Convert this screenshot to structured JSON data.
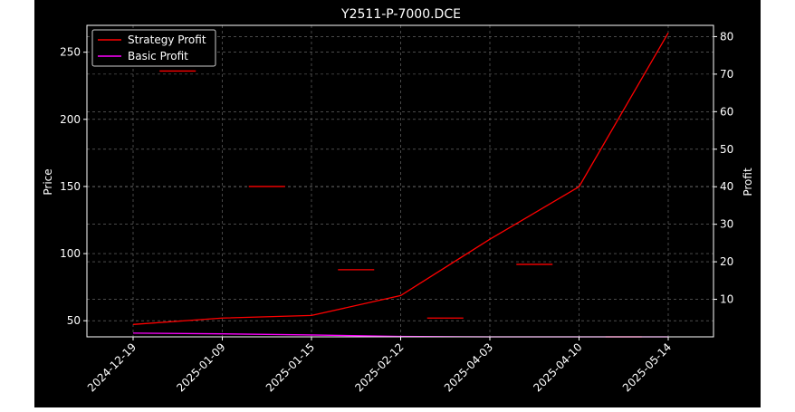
{
  "chart_data": {
    "type": "line",
    "title": "Y2511-P-7000.DCE",
    "xlabel": "",
    "ylabel": "Price",
    "y2label": "Profit",
    "categories": [
      "2024-12-19",
      "2025-01-09",
      "2025-01-15",
      "2025-02-12",
      "2025-04-03",
      "2025-04-10",
      "2025-05-14"
    ],
    "ylim": [
      38,
      270
    ],
    "yticks": [
      "50",
      "100",
      "150",
      "200",
      "250"
    ],
    "y2lim": [
      0,
      83
    ],
    "y2ticks": [
      "10",
      "20",
      "30",
      "40",
      "50",
      "60",
      "70",
      "80"
    ],
    "grid": true,
    "legend_position": "top-left",
    "background": "#000000",
    "price_markers": {
      "color": "#ff0000",
      "values": [
        236,
        150,
        88,
        52,
        92,
        38
      ]
    },
    "series": [
      {
        "name": "Strategy Profit",
        "color": "#ff0000",
        "axis": "right",
        "values": [
          3.3,
          5.0,
          5.7,
          11.0,
          26.0,
          40.0,
          81.0
        ]
      },
      {
        "name": "Basic Profit",
        "color": "#ff00ff",
        "axis": "right",
        "values": [
          1.0,
          0.8,
          0.5,
          0.1,
          0.0,
          0.0,
          0.0
        ]
      }
    ]
  }
}
